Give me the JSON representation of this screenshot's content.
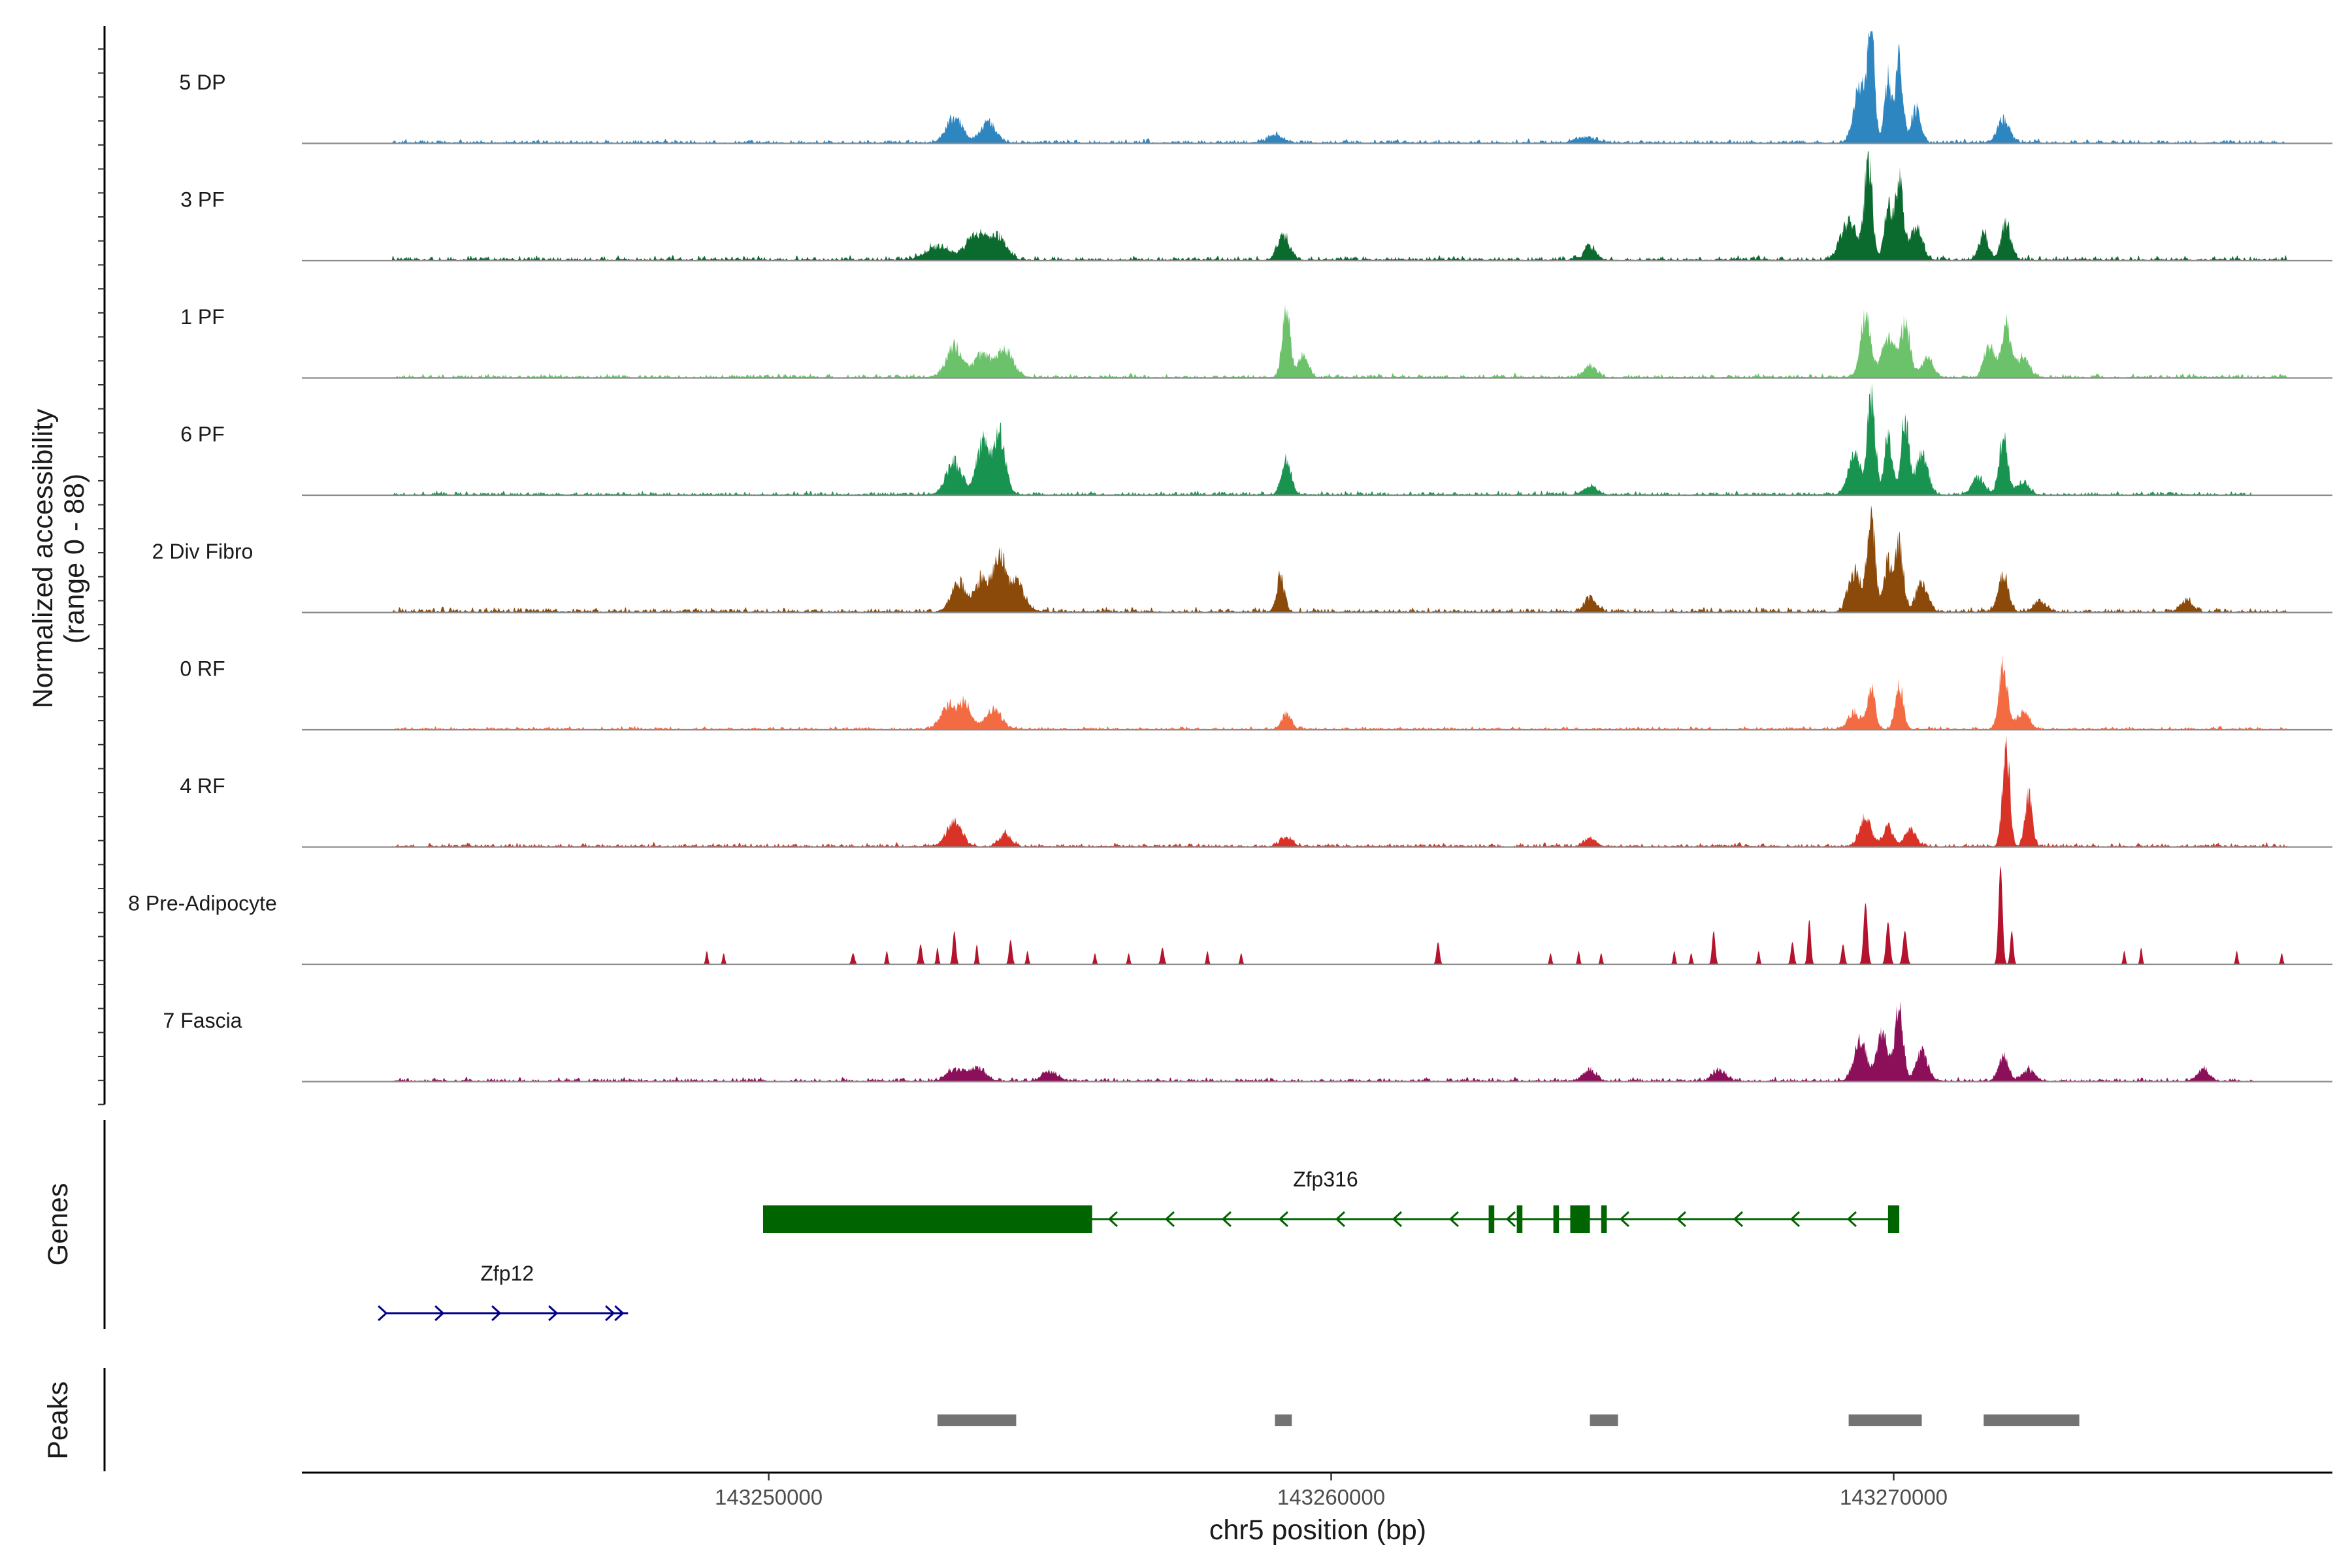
{
  "chart_data": {
    "type": "coverage-track",
    "region_chromosome": "chr5",
    "y_axis": {
      "title_line1": "Normalized accessibility",
      "title_line2": "(range 0 - 88)",
      "range": [
        0,
        88
      ]
    },
    "x_axis": {
      "title": "chr5 position (bp)",
      "range": [
        143241700,
        143277800
      ],
      "ticks": [
        {
          "value": 143250000,
          "label": "143250000"
        },
        {
          "value": 143260000,
          "label": "143260000"
        },
        {
          "value": 143270000,
          "label": "143270000"
        }
      ]
    },
    "tracks": [
      {
        "name": "5 DP",
        "color": "#2E86C1",
        "signal_start": 143243300,
        "signal_end": 143277000,
        "noise": 0.05,
        "jagged": false,
        "peaks": [
          [
            143253300,
            0.22,
            200
          ],
          [
            143253900,
            0.18,
            200
          ],
          [
            143259000,
            0.06,
            200
          ],
          [
            143264500,
            0.05,
            200
          ],
          [
            143269400,
            0.5,
            150
          ],
          [
            143269600,
            0.95,
            90
          ],
          [
            143269900,
            0.55,
            90
          ],
          [
            143270100,
            0.75,
            90
          ],
          [
            143270400,
            0.3,
            120
          ],
          [
            143271950,
            0.2,
            150
          ]
        ]
      },
      {
        "name": "3 PF",
        "color": "#0B6B2E",
        "signal_start": 143243300,
        "signal_end": 143277000,
        "noise": 0.06,
        "jagged": false,
        "peaks": [
          [
            143253000,
            0.12,
            300
          ],
          [
            143253700,
            0.22,
            250
          ],
          [
            143254100,
            0.2,
            200
          ],
          [
            143259150,
            0.22,
            150
          ],
          [
            143264600,
            0.12,
            150
          ],
          [
            143269200,
            0.35,
            200
          ],
          [
            143269550,
            0.85,
            100
          ],
          [
            143269900,
            0.45,
            100
          ],
          [
            143270100,
            0.7,
            100
          ],
          [
            143270400,
            0.28,
            150
          ],
          [
            143271600,
            0.22,
            120
          ],
          [
            143272000,
            0.32,
            120
          ]
        ]
      },
      {
        "name": "1 PF",
        "color": "#6CC26B",
        "signal_start": 143243300,
        "signal_end": 143277000,
        "noise": 0.05,
        "jagged": false,
        "peaks": [
          [
            143253300,
            0.28,
            200
          ],
          [
            143253800,
            0.2,
            200
          ],
          [
            143254200,
            0.25,
            200
          ],
          [
            143259200,
            0.62,
            100
          ],
          [
            143259500,
            0.2,
            120
          ],
          [
            143264600,
            0.1,
            150
          ],
          [
            143269500,
            0.55,
            130
          ],
          [
            143269900,
            0.35,
            150
          ],
          [
            143270200,
            0.45,
            130
          ],
          [
            143270600,
            0.18,
            150
          ],
          [
            143271700,
            0.28,
            130
          ],
          [
            143272000,
            0.45,
            120
          ],
          [
            143272300,
            0.18,
            150
          ]
        ]
      },
      {
        "name": "6 PF",
        "color": "#199450",
        "signal_start": 143243300,
        "signal_end": 143276400,
        "noise": 0.05,
        "jagged": false,
        "peaks": [
          [
            143253300,
            0.28,
            200
          ],
          [
            143253800,
            0.45,
            150
          ],
          [
            143254100,
            0.55,
            150
          ],
          [
            143259200,
            0.3,
            120
          ],
          [
            143264600,
            0.08,
            150
          ],
          [
            143269300,
            0.35,
            150
          ],
          [
            143269600,
            0.88,
            100
          ],
          [
            143269900,
            0.5,
            100
          ],
          [
            143270200,
            0.68,
            100
          ],
          [
            143270500,
            0.35,
            150
          ],
          [
            143271500,
            0.15,
            150
          ],
          [
            143271950,
            0.48,
            110
          ],
          [
            143272300,
            0.12,
            150
          ]
        ]
      },
      {
        "name": "2 Div Fibro",
        "color": "#8B4A0A",
        "signal_start": 143243300,
        "signal_end": 143277000,
        "noise": 0.06,
        "jagged": false,
        "peaks": [
          [
            143253400,
            0.25,
            200
          ],
          [
            143253800,
            0.3,
            150
          ],
          [
            143254100,
            0.5,
            150
          ],
          [
            143254400,
            0.25,
            200
          ],
          [
            143259100,
            0.3,
            100
          ],
          [
            143264600,
            0.12,
            150
          ],
          [
            143269300,
            0.35,
            150
          ],
          [
            143269600,
            0.88,
            100
          ],
          [
            143269900,
            0.45,
            100
          ],
          [
            143270100,
            0.58,
            100
          ],
          [
            143270500,
            0.25,
            150
          ],
          [
            143271950,
            0.35,
            120
          ],
          [
            143272600,
            0.1,
            150
          ],
          [
            143275200,
            0.1,
            150
          ]
        ]
      },
      {
        "name": "0 RF",
        "color": "#F26B43",
        "signal_start": 143243300,
        "signal_end": 143277000,
        "noise": 0.04,
        "jagged": false,
        "peaks": [
          [
            143253200,
            0.2,
            200
          ],
          [
            143253500,
            0.22,
            150
          ],
          [
            143254000,
            0.18,
            200
          ],
          [
            143259200,
            0.14,
            120
          ],
          [
            143269300,
            0.15,
            150
          ],
          [
            143269600,
            0.35,
            100
          ],
          [
            143270100,
            0.38,
            100
          ],
          [
            143271950,
            0.55,
            110
          ],
          [
            143272300,
            0.15,
            150
          ]
        ]
      },
      {
        "name": "4 RF",
        "color": "#D93226",
        "signal_start": 143243300,
        "signal_end": 143277000,
        "noise": 0.05,
        "jagged": false,
        "peaks": [
          [
            143253300,
            0.2,
            200
          ],
          [
            143254200,
            0.1,
            150
          ],
          [
            143259200,
            0.08,
            150
          ],
          [
            143264600,
            0.08,
            150
          ],
          [
            143269500,
            0.25,
            150
          ],
          [
            143269900,
            0.18,
            120
          ],
          [
            143270300,
            0.14,
            150
          ],
          [
            143272000,
            0.9,
            90
          ],
          [
            143272400,
            0.45,
            90
          ]
        ]
      },
      {
        "name": "8 Pre-Adipocyte",
        "color": "#B5122E",
        "signal_start": 143243300,
        "signal_end": 143277000,
        "noise": 0.0,
        "jagged": true,
        "peaks": [
          [
            143248900,
            0.12,
            30
          ],
          [
            143249200,
            0.1,
            30
          ],
          [
            143251500,
            0.1,
            40
          ],
          [
            143252100,
            0.12,
            30
          ],
          [
            143252700,
            0.18,
            40
          ],
          [
            143253000,
            0.15,
            30
          ],
          [
            143253300,
            0.3,
            40
          ],
          [
            143253700,
            0.18,
            30
          ],
          [
            143254300,
            0.22,
            40
          ],
          [
            143254600,
            0.12,
            30
          ],
          [
            143255800,
            0.1,
            30
          ],
          [
            143256400,
            0.1,
            30
          ],
          [
            143257000,
            0.15,
            40
          ],
          [
            143257800,
            0.12,
            30
          ],
          [
            143258400,
            0.1,
            30
          ],
          [
            143261900,
            0.2,
            40
          ],
          [
            143263900,
            0.1,
            30
          ],
          [
            143264400,
            0.12,
            30
          ],
          [
            143264800,
            0.1,
            30
          ],
          [
            143266100,
            0.12,
            30
          ],
          [
            143266400,
            0.1,
            30
          ],
          [
            143266800,
            0.3,
            40
          ],
          [
            143267600,
            0.12,
            30
          ],
          [
            143268200,
            0.2,
            40
          ],
          [
            143268500,
            0.4,
            40
          ],
          [
            143269100,
            0.18,
            40
          ],
          [
            143269500,
            0.55,
            50
          ],
          [
            143269900,
            0.38,
            50
          ],
          [
            143270200,
            0.3,
            50
          ],
          [
            143271900,
            0.88,
            50
          ],
          [
            143272100,
            0.3,
            40
          ],
          [
            143274100,
            0.12,
            30
          ],
          [
            143274400,
            0.15,
            30
          ],
          [
            143276100,
            0.12,
            30
          ],
          [
            143276900,
            0.1,
            30
          ]
        ]
      },
      {
        "name": "7 Fascia",
        "color": "#8C0F5A",
        "signal_start": 143243300,
        "signal_end": 143276400,
        "noise": 0.05,
        "jagged": false,
        "peaks": [
          [
            143253300,
            0.1,
            200
          ],
          [
            143253700,
            0.12,
            200
          ],
          [
            143255000,
            0.08,
            200
          ],
          [
            143264600,
            0.1,
            150
          ],
          [
            143266900,
            0.1,
            150
          ],
          [
            143269400,
            0.35,
            150
          ],
          [
            143269800,
            0.4,
            150
          ],
          [
            143270100,
            0.65,
            100
          ],
          [
            143270500,
            0.25,
            150
          ],
          [
            143271950,
            0.22,
            120
          ],
          [
            143272400,
            0.1,
            150
          ],
          [
            143275500,
            0.1,
            150
          ]
        ]
      }
    ],
    "genes_panel_title": "Genes",
    "genes": [
      {
        "name": "Zfp316",
        "strand": "-",
        "color": "#006400",
        "start": 143249900,
        "end": 143270100,
        "exons": [
          [
            143249900,
            143255750
          ],
          [
            143262800,
            143262900
          ],
          [
            143263300,
            143263400
          ],
          [
            143263950,
            143264050
          ],
          [
            143264250,
            143264600
          ],
          [
            143264800,
            143264900
          ],
          [
            143269900,
            143270100
          ]
        ]
      },
      {
        "name": "Zfp12",
        "strand": "+",
        "color": "#00008B",
        "start": 143243200,
        "end": 143247500,
        "exons": []
      }
    ],
    "peaks_panel_title": "Peaks",
    "peaks_color": "#737373",
    "peaks": [
      [
        143253000,
        143254400
      ],
      [
        143259000,
        143259300
      ],
      [
        143264600,
        143265100
      ],
      [
        143269200,
        143270500
      ],
      [
        143271600,
        143273300
      ]
    ]
  }
}
